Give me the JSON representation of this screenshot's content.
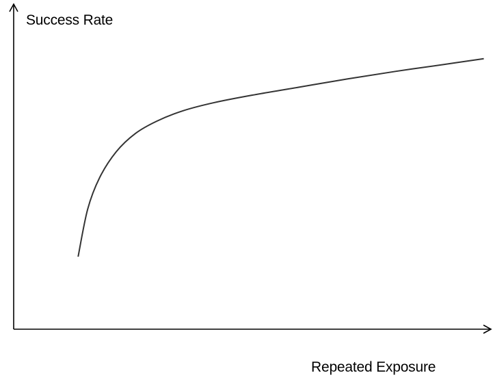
{
  "colors": {
    "background": "#ffffff",
    "axis": "#000000",
    "curve": "#333333"
  },
  "chart_data": {
    "type": "line",
    "title": "",
    "xlabel": "Repeated Exposure",
    "ylabel": "Success Rate",
    "grid": false,
    "legend": "none",
    "xlim": [
      0,
      1
    ],
    "ylim": [
      0,
      1
    ],
    "series": [
      {
        "values": [
          {
            "x": 0.135,
            "y": 0.223
          },
          {
            "x": 0.155,
            "y": 0.369
          },
          {
            "x": 0.18,
            "y": 0.466
          },
          {
            "x": 0.215,
            "y": 0.546
          },
          {
            "x": 0.255,
            "y": 0.602
          },
          {
            "x": 0.3,
            "y": 0.64
          },
          {
            "x": 0.355,
            "y": 0.672
          },
          {
            "x": 0.42,
            "y": 0.697
          },
          {
            "x": 0.5,
            "y": 0.72
          },
          {
            "x": 0.6,
            "y": 0.745
          },
          {
            "x": 0.7,
            "y": 0.77
          },
          {
            "x": 0.8,
            "y": 0.793
          },
          {
            "x": 0.9,
            "y": 0.814
          },
          {
            "x": 0.985,
            "y": 0.832
          }
        ]
      }
    ]
  }
}
